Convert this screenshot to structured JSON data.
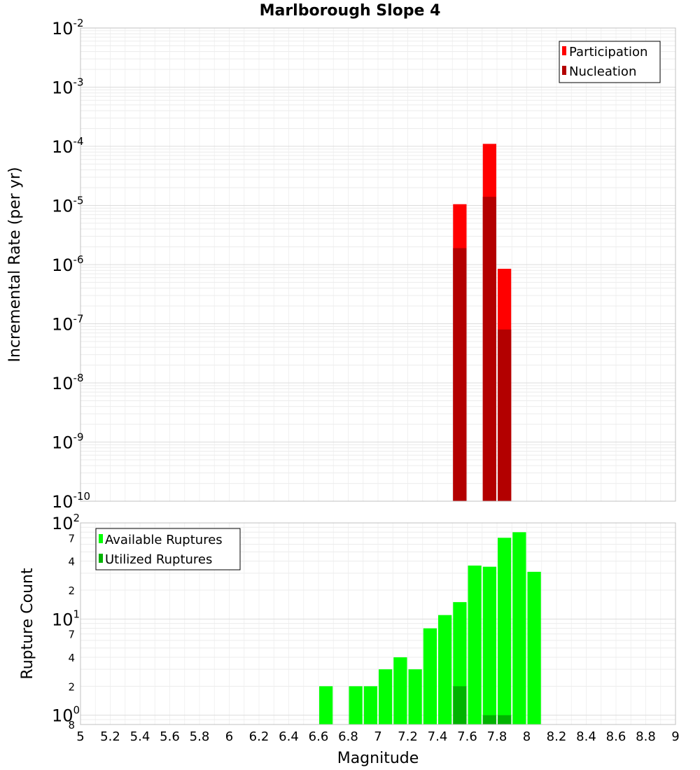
{
  "chart_data": [
    {
      "type": "bar",
      "panel": "top",
      "title": "Marlborough Slope 4",
      "xlabel": "",
      "ylabel": "Incremental Rate (per yr)",
      "yscale": "log",
      "xlim": [
        5,
        9
      ],
      "ylim": [
        1e-10,
        0.01
      ],
      "bin_width": 0.1,
      "y_decades": [
        {
          "base": "10",
          "exp": "-10"
        },
        {
          "base": "10",
          "exp": "-9"
        },
        {
          "base": "10",
          "exp": "-8"
        },
        {
          "base": "10",
          "exp": "-7"
        },
        {
          "base": "10",
          "exp": "-6"
        },
        {
          "base": "10",
          "exp": "-5"
        },
        {
          "base": "10",
          "exp": "-4"
        },
        {
          "base": "10",
          "exp": "-3"
        },
        {
          "base": "10",
          "exp": "-2"
        }
      ],
      "series": [
        {
          "name": "Participation",
          "color": "#ff0000",
          "x": [
            7.55,
            7.75,
            7.85
          ],
          "values": [
            1.05e-05,
            0.00011,
            8.5e-07
          ]
        },
        {
          "name": "Nucleation",
          "color": "#b30000",
          "x": [
            7.55,
            7.75,
            7.85
          ],
          "values": [
            1.9e-06,
            1.4e-05,
            8e-08
          ]
        }
      ],
      "legend": {
        "position": "top-right",
        "entries": [
          "Participation",
          "Nucleation"
        ]
      }
    },
    {
      "type": "bar",
      "panel": "bottom",
      "title": "",
      "xlabel": "Magnitude",
      "ylabel": "Rupture Count",
      "yscale": "log",
      "xlim": [
        5,
        9
      ],
      "ylim": [
        0.8,
        100
      ],
      "bin_width": 0.1,
      "x_ticks": [
        "5",
        "5.2",
        "5.4",
        "5.6",
        "5.8",
        "6",
        "6.2",
        "6.4",
        "6.6",
        "6.8",
        "7",
        "7.2",
        "7.4",
        "7.6",
        "7.8",
        "8",
        "8.2",
        "8.4",
        "8.6",
        "8.8",
        "9"
      ],
      "y_decades": [
        {
          "base": "10",
          "exp": "0"
        },
        {
          "base": "10",
          "exp": "1"
        },
        {
          "base": "10",
          "exp": "2"
        }
      ],
      "y_minor_labels": [
        "8",
        "2",
        "4",
        "7",
        "2",
        "4",
        "7"
      ],
      "series": [
        {
          "name": "Available Ruptures",
          "color": "#00ff00",
          "x": [
            6.65,
            6.85,
            6.95,
            7.05,
            7.15,
            7.25,
            7.35,
            7.45,
            7.55,
            7.65,
            7.75,
            7.85,
            7.95,
            8.05
          ],
          "values": [
            2,
            2,
            2,
            3,
            4,
            3,
            8,
            11,
            15,
            36,
            35,
            70,
            80,
            31
          ]
        },
        {
          "name": "Utilized Ruptures",
          "color": "#00b300",
          "x": [
            7.55,
            7.75,
            7.85
          ],
          "values": [
            2,
            1,
            1
          ]
        }
      ],
      "legend": {
        "position": "top-left",
        "entries": [
          "Available Ruptures",
          "Utilized Ruptures"
        ]
      }
    }
  ]
}
